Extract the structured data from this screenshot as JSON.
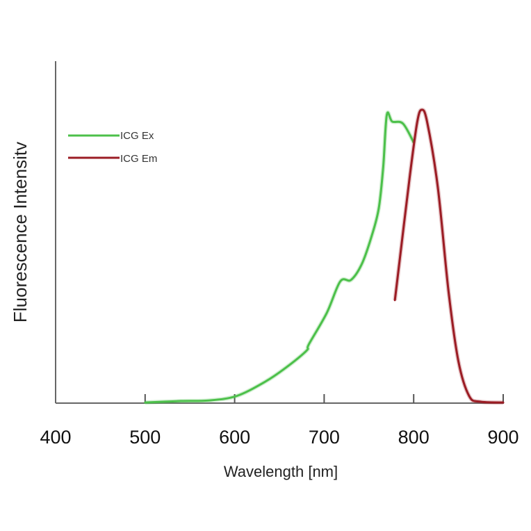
{
  "chart_data": {
    "type": "line",
    "title": "",
    "xlabel": "Wavelength [nm]",
    "ylabel": "Fluorescence Intensitv",
    "xlim": [
      400,
      900
    ],
    "ylim": [
      0,
      100
    ],
    "x_ticks": [
      400,
      500,
      600,
      700,
      800,
      900
    ],
    "x_tick_labels": [
      "400",
      "500",
      "600",
      "700",
      "800",
      "900"
    ],
    "y_ticks": [],
    "grid": false,
    "legend_position": "upper-left",
    "series": [
      {
        "name": "ICG Ex",
        "color": "#4cc04a",
        "x": [
          500,
          540,
          571,
          602,
          633,
          656,
          680,
          683,
          703,
          718,
          730,
          742,
          753,
          761,
          766,
          770,
          776,
          788,
          800
        ],
        "y": [
          0.2,
          0.7,
          0.9,
          2.4,
          7.1,
          11.8,
          17.8,
          20.1,
          30.8,
          41.5,
          42.0,
          47.4,
          56.9,
          66.4,
          80.6,
          98.3,
          96.0,
          95.3,
          88.9
        ]
      },
      {
        "name": "ICG Em",
        "color": "#9b1c24",
        "x": [
          779,
          782,
          796,
          804,
          809,
          815,
          827,
          839,
          850,
          862,
          874,
          900
        ],
        "y": [
          35.1,
          42.7,
          78.2,
          95.9,
          100,
          95.9,
          73.5,
          37.9,
          14.2,
          2.4,
          0.5,
          0.2
        ]
      }
    ]
  },
  "legend": {
    "items": [
      {
        "label": "ICG Ex",
        "color": "#4cc04a"
      },
      {
        "label": "ICG Em",
        "color": "#9b1c24"
      }
    ]
  },
  "axes": {
    "xlabel": "Wavelength [nm]",
    "ylabel": "Fluorescence Intensitv",
    "axis_color": "#666666"
  }
}
